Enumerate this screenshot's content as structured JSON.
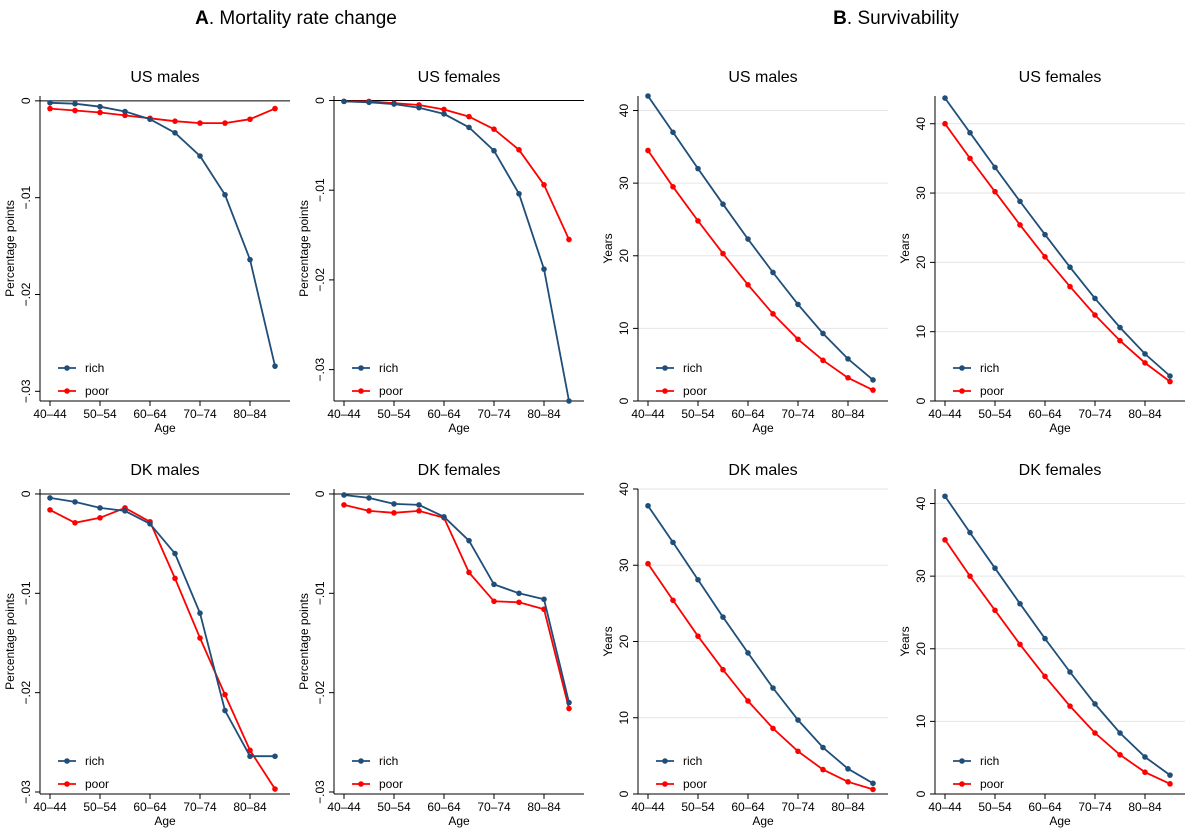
{
  "panels": [
    {
      "letter": "A",
      "title": ". Mortality rate change"
    },
    {
      "letter": "B",
      "title": ". Survivability"
    }
  ],
  "colors": {
    "rich": "#1f4e79",
    "poor": "#ff0000"
  },
  "chart_data": [
    {
      "type": "line",
      "panel": "A",
      "title": "US males",
      "xlabel": "Age",
      "ylabel": "Percentage points",
      "x_tick_labels": [
        "40–44",
        "50–54",
        "60–64",
        "70–74",
        "80–84"
      ],
      "x": [
        42,
        47,
        52,
        57,
        62,
        67,
        72,
        77,
        82,
        87
      ],
      "ylim": [
        -0.031,
        0.0005
      ],
      "yticks": [
        0,
        -0.01,
        -0.02,
        -0.03
      ],
      "ytick_labels": [
        "0",
        "−.01",
        "−.02",
        "−.03"
      ],
      "zero_line": true,
      "grid": false,
      "legend_position": "bottom-left",
      "series": [
        {
          "name": "rich",
          "values": [
            -0.0002,
            -0.0003,
            -0.0006,
            -0.0011,
            -0.0019,
            -0.0033,
            -0.0057,
            -0.0097,
            -0.0164,
            -0.0274
          ]
        },
        {
          "name": "poor",
          "values": [
            -0.0008,
            -0.001,
            -0.0012,
            -0.0015,
            -0.0018,
            -0.0021,
            -0.0023,
            -0.0023,
            -0.0019,
            -0.0008
          ]
        }
      ]
    },
    {
      "type": "line",
      "panel": "A",
      "title": "US females",
      "xlabel": "Age",
      "ylabel": "Percentage points",
      "x_tick_labels": [
        "40–44",
        "50–54",
        "60–64",
        "70–74",
        "80–84"
      ],
      "x": [
        42,
        47,
        52,
        57,
        62,
        67,
        72,
        77,
        82,
        87
      ],
      "ylim": [
        -0.0335,
        0.0005
      ],
      "yticks": [
        0,
        -0.01,
        -0.02,
        -0.03
      ],
      "ytick_labels": [
        "0",
        "−.01",
        "−.02",
        "−.03"
      ],
      "zero_line": true,
      "grid": false,
      "legend_position": "bottom-left",
      "series": [
        {
          "name": "rich",
          "values": [
            -0.0001,
            -0.0002,
            -0.0004,
            -0.0008,
            -0.0015,
            -0.003,
            -0.0056,
            -0.0104,
            -0.0188,
            -0.0335
          ]
        },
        {
          "name": "poor",
          "values": [
            -0.0001,
            -0.0001,
            -0.0003,
            -0.0005,
            -0.001,
            -0.0018,
            -0.0032,
            -0.0055,
            -0.0094,
            -0.0155
          ]
        }
      ]
    },
    {
      "type": "line",
      "panel": "B",
      "title": "US males",
      "xlabel": "Age",
      "ylabel": "Years",
      "x_tick_labels": [
        "40–44",
        "50–54",
        "60–64",
        "70–74",
        "80–84"
      ],
      "x": [
        42,
        47,
        52,
        57,
        62,
        67,
        72,
        77,
        82,
        87
      ],
      "ylim": [
        0,
        42
      ],
      "yticks": [
        0,
        10,
        20,
        30,
        40
      ],
      "ytick_labels": [
        "0",
        "10",
        "20",
        "30",
        "40"
      ],
      "zero_line": false,
      "grid": true,
      "legend_position": "bottom-left",
      "series": [
        {
          "name": "rich",
          "values": [
            42.0,
            37.0,
            32.0,
            27.1,
            22.3,
            17.7,
            13.3,
            9.3,
            5.8,
            2.9
          ]
        },
        {
          "name": "poor",
          "values": [
            34.5,
            29.5,
            24.8,
            20.3,
            16.0,
            12.0,
            8.5,
            5.6,
            3.2,
            1.5
          ]
        }
      ]
    },
    {
      "type": "line",
      "panel": "B",
      "title": "US females",
      "xlabel": "Age",
      "ylabel": "Years",
      "x_tick_labels": [
        "40–44",
        "50–54",
        "60–64",
        "70–74",
        "80–84"
      ],
      "x": [
        42,
        47,
        52,
        57,
        62,
        67,
        72,
        77,
        82,
        87
      ],
      "ylim": [
        0,
        44
      ],
      "yticks": [
        0,
        10,
        20,
        30,
        40
      ],
      "ytick_labels": [
        "0",
        "10",
        "20",
        "30",
        "40"
      ],
      "zero_line": false,
      "grid": true,
      "legend_position": "bottom-left",
      "series": [
        {
          "name": "rich",
          "values": [
            43.7,
            38.7,
            33.7,
            28.8,
            24.0,
            19.3,
            14.8,
            10.6,
            6.8,
            3.6
          ]
        },
        {
          "name": "poor",
          "values": [
            40.0,
            35.0,
            30.2,
            25.4,
            20.8,
            16.5,
            12.4,
            8.7,
            5.5,
            2.8
          ]
        }
      ]
    },
    {
      "type": "line",
      "panel": "A",
      "title": "DK males",
      "xlabel": "Age",
      "ylabel": "Percentage points",
      "x_tick_labels": [
        "40–44",
        "50–54",
        "60–64",
        "70–74",
        "80–84"
      ],
      "x": [
        42,
        47,
        52,
        57,
        62,
        67,
        72,
        77,
        82,
        87
      ],
      "ylim": [
        -0.0302,
        0.0005
      ],
      "yticks": [
        0,
        -0.01,
        -0.02,
        -0.03
      ],
      "ytick_labels": [
        "0",
        "−.01",
        "−.02",
        "−.03"
      ],
      "zero_line": true,
      "grid": false,
      "legend_position": "bottom-left",
      "series": [
        {
          "name": "rich",
          "values": [
            -0.0004,
            -0.0008,
            -0.0014,
            -0.0017,
            -0.003,
            -0.006,
            -0.012,
            -0.0218,
            -0.0264,
            -0.0264
          ]
        },
        {
          "name": "poor",
          "values": [
            -0.0016,
            -0.0029,
            -0.0024,
            -0.0014,
            -0.0028,
            -0.0085,
            -0.0145,
            -0.0202,
            -0.0258,
            -0.0297
          ]
        }
      ]
    },
    {
      "type": "line",
      "panel": "A",
      "title": "DK females",
      "xlabel": "Age",
      "ylabel": "Percentage points",
      "x_tick_labels": [
        "40–44",
        "50–54",
        "60–64",
        "70–74",
        "80–84"
      ],
      "x": [
        42,
        47,
        52,
        57,
        62,
        67,
        72,
        77,
        82,
        87
      ],
      "ylim": [
        -0.0302,
        0.0005
      ],
      "yticks": [
        0,
        -0.01,
        -0.02,
        -0.03
      ],
      "ytick_labels": [
        "0",
        "−.01",
        "−.02",
        "−.03"
      ],
      "zero_line": true,
      "grid": false,
      "legend_position": "bottom-left",
      "series": [
        {
          "name": "rich",
          "values": [
            -0.0001,
            -0.0004,
            -0.001,
            -0.0011,
            -0.0023,
            -0.0047,
            -0.0091,
            -0.01,
            -0.0106,
            -0.021
          ]
        },
        {
          "name": "poor",
          "values": [
            -0.0011,
            -0.0017,
            -0.0019,
            -0.0017,
            -0.0024,
            -0.0079,
            -0.0108,
            -0.0109,
            -0.0116,
            -0.0216
          ]
        }
      ]
    },
    {
      "type": "line",
      "panel": "B",
      "title": "DK males",
      "xlabel": "Age",
      "ylabel": "Years",
      "x_tick_labels": [
        "40–44",
        "50–54",
        "60–64",
        "70–74",
        "80–84"
      ],
      "x": [
        42,
        47,
        52,
        57,
        62,
        67,
        72,
        77,
        82,
        87
      ],
      "ylim": [
        0,
        40
      ],
      "yticks": [
        0,
        10,
        20,
        30,
        40
      ],
      "ytick_labels": [
        "0",
        "10",
        "20",
        "30",
        "40"
      ],
      "zero_line": false,
      "grid": true,
      "legend_position": "bottom-left",
      "series": [
        {
          "name": "rich",
          "values": [
            37.8,
            33.0,
            28.1,
            23.2,
            18.5,
            13.9,
            9.7,
            6.1,
            3.3,
            1.4
          ]
        },
        {
          "name": "poor",
          "values": [
            30.2,
            25.4,
            20.7,
            16.3,
            12.2,
            8.6,
            5.6,
            3.2,
            1.6,
            0.6
          ]
        }
      ]
    },
    {
      "type": "line",
      "panel": "B",
      "title": "DK females",
      "xlabel": "Age",
      "ylabel": "Years",
      "x_tick_labels": [
        "40–44",
        "50–54",
        "60–64",
        "70–74",
        "80–84"
      ],
      "x": [
        42,
        47,
        52,
        57,
        62,
        67,
        72,
        77,
        82,
        87
      ],
      "ylim": [
        0,
        42
      ],
      "yticks": [
        0,
        10,
        20,
        30,
        40
      ],
      "ytick_labels": [
        "0",
        "10",
        "20",
        "30",
        "40"
      ],
      "zero_line": false,
      "grid": true,
      "legend_position": "bottom-left",
      "series": [
        {
          "name": "rich",
          "values": [
            41.0,
            36.0,
            31.1,
            26.2,
            21.4,
            16.8,
            12.4,
            8.4,
            5.1,
            2.6
          ]
        },
        {
          "name": "poor",
          "values": [
            35.0,
            30.0,
            25.3,
            20.6,
            16.2,
            12.1,
            8.4,
            5.4,
            3.0,
            1.4
          ]
        }
      ]
    }
  ]
}
